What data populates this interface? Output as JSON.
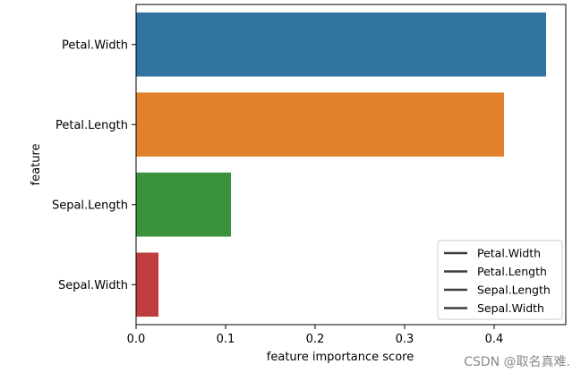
{
  "chart_data": {
    "type": "bar",
    "orientation": "horizontal",
    "title": "",
    "xlabel": "feature importance score",
    "ylabel": "feature",
    "categories": [
      "Petal.Width",
      "Petal.Length",
      "Sepal.Length",
      "Sepal.Width"
    ],
    "values": [
      0.458,
      0.411,
      0.106,
      0.025
    ],
    "colors": [
      "#3274a1",
      "#e1812c",
      "#3a923a",
      "#c03d3e"
    ],
    "xlim": [
      0,
      0.48
    ],
    "xticks": [
      0.0,
      0.1,
      0.2,
      0.3,
      0.4
    ],
    "xtick_labels": [
      "0.0",
      "0.1",
      "0.2",
      "0.3",
      "0.4"
    ],
    "grid": false,
    "legend": {
      "placement": "lower-right",
      "entries": [
        "Petal.Width",
        "Petal.Length",
        "Sepal.Length",
        "Sepal.Width"
      ],
      "line_color": "#3d3d3d"
    }
  },
  "watermark": "CSDN @取名真难."
}
